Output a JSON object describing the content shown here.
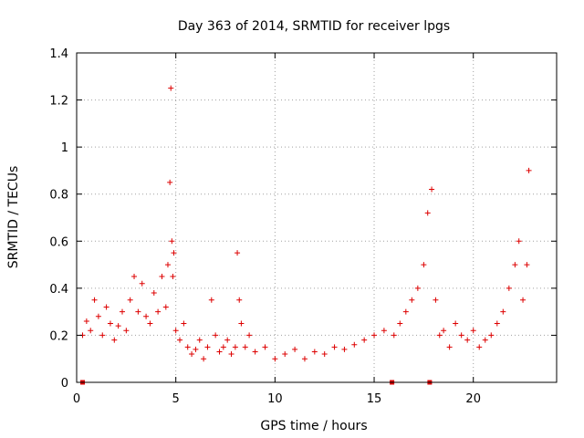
{
  "chart_data": {
    "type": "scatter",
    "title": "Day 363 of 2014, SRMTID for receiver lpgs",
    "xlabel": "GPS time / hours",
    "ylabel": "SRMTID / TECUs",
    "xlim": [
      0,
      24.2
    ],
    "ylim": [
      0,
      1.4
    ],
    "xticks": [
      0,
      5,
      10,
      15,
      20
    ],
    "xtick_labels": [
      "0",
      "5",
      "10",
      "15",
      "20"
    ],
    "yticks": [
      0,
      0.2,
      0.4,
      0.6,
      0.8,
      1.0,
      1.2,
      1.4
    ],
    "ytick_labels": [
      "0",
      "0.2",
      "0.4",
      "0.6",
      "0.8",
      "1",
      "1.2",
      "1.4"
    ],
    "grid": true,
    "marker": "plus",
    "marker_color": "#dd0000",
    "zero_markers_x": [
      0.3,
      15.9,
      17.8
    ],
    "series": [
      {
        "name": "SRMTID",
        "x": [
          0.3,
          0.5,
          0.7,
          0.9,
          1.1,
          1.3,
          1.5,
          1.7,
          1.9,
          2.1,
          2.3,
          2.5,
          2.7,
          2.9,
          3.1,
          3.3,
          3.5,
          3.7,
          3.9,
          4.1,
          4.3,
          4.5,
          4.6,
          4.7,
          4.75,
          4.8,
          4.85,
          4.9,
          5.0,
          5.2,
          5.4,
          5.6,
          5.8,
          6.0,
          6.2,
          6.4,
          6.6,
          6.8,
          7.0,
          7.2,
          7.4,
          7.6,
          7.8,
          8.0,
          8.1,
          8.2,
          8.3,
          8.5,
          8.7,
          9.0,
          9.5,
          10.0,
          10.5,
          11.0,
          11.5,
          12.0,
          12.5,
          13.0,
          13.5,
          14.0,
          14.5,
          15.0,
          15.5,
          16.0,
          16.3,
          16.6,
          16.9,
          17.2,
          17.5,
          17.7,
          17.9,
          18.1,
          18.3,
          18.5,
          18.8,
          19.1,
          19.4,
          19.7,
          20.0,
          20.3,
          20.6,
          20.9,
          21.2,
          21.5,
          21.8,
          22.1,
          22.3,
          22.5,
          22.7,
          22.8
        ],
        "y": [
          0.2,
          0.26,
          0.22,
          0.35,
          0.28,
          0.2,
          0.32,
          0.25,
          0.18,
          0.24,
          0.3,
          0.22,
          0.35,
          0.45,
          0.3,
          0.42,
          0.28,
          0.25,
          0.38,
          0.3,
          0.45,
          0.32,
          0.5,
          0.85,
          1.25,
          0.6,
          0.45,
          0.55,
          0.22,
          0.18,
          0.25,
          0.15,
          0.12,
          0.14,
          0.18,
          0.1,
          0.15,
          0.35,
          0.2,
          0.13,
          0.15,
          0.18,
          0.12,
          0.15,
          0.55,
          0.35,
          0.25,
          0.15,
          0.2,
          0.13,
          0.15,
          0.1,
          0.12,
          0.14,
          0.1,
          0.13,
          0.12,
          0.15,
          0.14,
          0.16,
          0.18,
          0.2,
          0.22,
          0.2,
          0.25,
          0.3,
          0.35,
          0.4,
          0.5,
          0.72,
          0.82,
          0.35,
          0.2,
          0.22,
          0.15,
          0.25,
          0.2,
          0.18,
          0.22,
          0.15,
          0.18,
          0.2,
          0.25,
          0.3,
          0.4,
          0.5,
          0.6,
          0.35,
          0.5,
          0.9
        ]
      }
    ]
  }
}
